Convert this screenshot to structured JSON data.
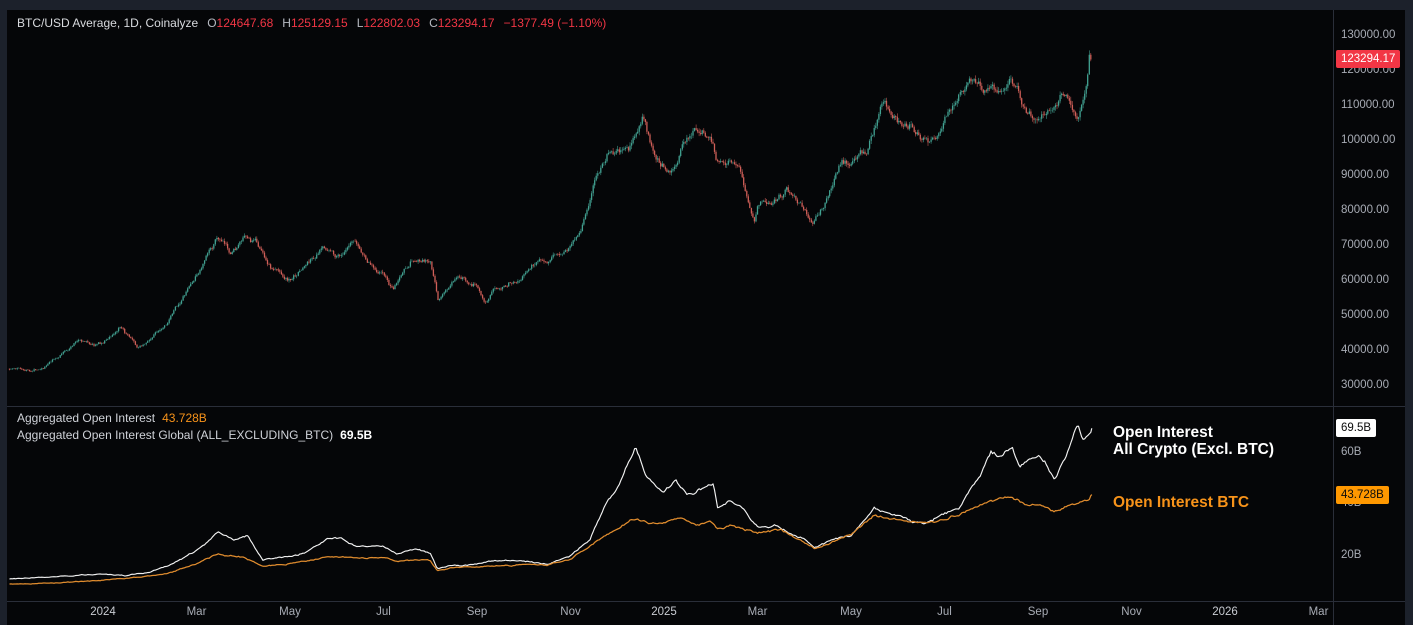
{
  "header": {
    "symbol_title": "BTC/USD Average, 1D, Coinalyze",
    "ohlc": {
      "o_label": "O",
      "o": "124647.68",
      "h_label": "H",
      "h": "125129.15",
      "l_label": "L",
      "l": "122802.03",
      "c_label": "C",
      "c": "123294.17",
      "change": "−1377.49 (−1.10%)"
    }
  },
  "oi_pane": {
    "legend_row1_label": "Aggregated Open Interest",
    "legend_row1_value": "43.728B",
    "legend_row2_label": "Aggregated Open Interest Global (ALL_EXCLUDING_BTC)",
    "legend_row2_value": "69.5B",
    "white_line_label_line1": "Open Interest",
    "white_line_label_line2": "All Crypto (Excl. BTC)",
    "orange_line_label": "Open Interest BTC"
  },
  "badges": {
    "price_current": "123294.17",
    "oi_white_current": "69.5B",
    "oi_orange_current": "43.728B"
  },
  "colors": {
    "candle_up": "#42a292",
    "candle_down": "#d05f58",
    "oi_white": "#f2f2f2",
    "oi_orange": "#e08c2e",
    "price_badge_bg": "#f23645",
    "orange_badge_bg": "#ff9800",
    "negative_text": "#f23645",
    "orange_text": "#f7931a"
  },
  "chart_data": {
    "note": "m = months elapsed since 2023-11-01; data ends early Oct 2025",
    "x_axis": {
      "months_per_label": 2,
      "labels": [
        {
          "label": "2024",
          "m": 2
        },
        {
          "label": "Mar",
          "m": 4
        },
        {
          "label": "May",
          "m": 6
        },
        {
          "label": "Jul",
          "m": 8
        },
        {
          "label": "Sep",
          "m": 10
        },
        {
          "label": "Nov",
          "m": 12
        },
        {
          "label": "2025",
          "m": 14
        },
        {
          "label": "Mar",
          "m": 16
        },
        {
          "label": "May",
          "m": 18
        },
        {
          "label": "Jul",
          "m": 20
        },
        {
          "label": "Sep",
          "m": 22
        },
        {
          "label": "Nov",
          "m": 24
        },
        {
          "label": "2026",
          "m": 26
        },
        {
          "label": "Mar",
          "m": 28
        }
      ]
    },
    "price_pane": {
      "type": "candlestick",
      "name": "BTC/USD Average",
      "timeframe": "1D",
      "source": "Coinalyze",
      "last_candle": {
        "open": 124647.68,
        "high": 125129.15,
        "low": 122802.03,
        "close": 123294.17,
        "change": -1377.49,
        "change_pct": -1.1
      },
      "y_tick_labels": [
        "130000.00",
        "120000.00",
        "110000.00",
        "100000.00",
        "90000.00",
        "80000.00",
        "70000.00",
        "60000.00",
        "50000.00",
        "40000.00",
        "30000.00"
      ],
      "close_anchors": [
        [
          0,
          35000
        ],
        [
          0.5,
          34800
        ],
        [
          1,
          37800
        ],
        [
          1.5,
          43600
        ],
        [
          1.8,
          42000
        ],
        [
          2,
          42300
        ],
        [
          2.35,
          46600
        ],
        [
          2.75,
          39600
        ],
        [
          3,
          42600
        ],
        [
          3.5,
          51000
        ],
        [
          4,
          61200
        ],
        [
          4.45,
          71500
        ],
        [
          4.7,
          67500
        ],
        [
          5,
          71300
        ],
        [
          5.3,
          69500
        ],
        [
          5.6,
          63500
        ],
        [
          6,
          60600
        ],
        [
          6.5,
          66900
        ],
        [
          6.75,
          69500
        ],
        [
          7,
          67500
        ],
        [
          7.35,
          69900
        ],
        [
          7.7,
          64500
        ],
        [
          8,
          62700
        ],
        [
          8.2,
          56800
        ],
        [
          8.6,
          66500
        ],
        [
          9,
          64600
        ],
        [
          9.17,
          53900
        ],
        [
          9.5,
          59400
        ],
        [
          10,
          58900
        ],
        [
          10.2,
          54800
        ],
        [
          10.6,
          60000
        ],
        [
          11,
          63300
        ],
        [
          11.35,
          67400
        ],
        [
          11.7,
          67000
        ],
        [
          12,
          70200
        ],
        [
          12.2,
          75500
        ],
        [
          12.55,
          89900
        ],
        [
          12.8,
          97500
        ],
        [
          13,
          96400
        ],
        [
          13.25,
          95800
        ],
        [
          13.55,
          106100
        ],
        [
          13.75,
          95700
        ],
        [
          14,
          93400
        ],
        [
          14.2,
          94600
        ],
        [
          14.65,
          105000
        ],
        [
          15,
          102400
        ],
        [
          15.12,
          96600
        ],
        [
          15.6,
          96100
        ],
        [
          15.93,
          79500
        ],
        [
          16,
          84300
        ],
        [
          16.3,
          83700
        ],
        [
          16.6,
          86800
        ],
        [
          16.95,
          82500
        ],
        [
          17.2,
          76700
        ],
        [
          17.5,
          84500
        ],
        [
          17.8,
          94900
        ],
        [
          18,
          94200
        ],
        [
          18.35,
          97000
        ],
        [
          18.7,
          109700
        ],
        [
          19,
          104600
        ],
        [
          19.3,
          105800
        ],
        [
          19.7,
          100800
        ],
        [
          20,
          107200
        ],
        [
          20.45,
          118500
        ],
        [
          20.7,
          118000
        ],
        [
          21,
          115800
        ],
        [
          21.15,
          113200
        ],
        [
          21.42,
          121500
        ],
        [
          21.7,
          112500
        ],
        [
          21.95,
          108400
        ],
        [
          22.2,
          111500
        ],
        [
          22.55,
          116800
        ],
        [
          22.85,
          109500
        ],
        [
          23.0,
          114200
        ],
        [
          23.1,
          122500
        ],
        [
          23.15,
          123294
        ]
      ]
    },
    "oi_pane": {
      "type": "line",
      "unit": "B",
      "y_tick_labels": [
        "60B",
        "40B",
        "20B"
      ],
      "series": [
        {
          "name": "Aggregated Open Interest Global (ALL_EXCLUDING_BTC)",
          "display_label": "Open Interest All Crypto (Excl. BTC)",
          "current": 69.5,
          "anchors": [
            [
              0,
              11
            ],
            [
              1,
              12
            ],
            [
              2,
              13
            ],
            [
              2.5,
              12.2
            ],
            [
              3,
              13.5
            ],
            [
              3.5,
              17
            ],
            [
              4,
              22
            ],
            [
              4.45,
              29
            ],
            [
              4.8,
              26
            ],
            [
              5.1,
              27.5
            ],
            [
              5.42,
              18
            ],
            [
              5.8,
              19
            ],
            [
              6.3,
              21
            ],
            [
              6.8,
              27
            ],
            [
              7.1,
              26.5
            ],
            [
              7.5,
              23.5
            ],
            [
              8,
              23.5
            ],
            [
              8.3,
              20.5
            ],
            [
              8.7,
              23
            ],
            [
              9,
              21
            ],
            [
              9.15,
              14.8
            ],
            [
              9.5,
              16
            ],
            [
              10,
              16.5
            ],
            [
              10.4,
              18
            ],
            [
              11,
              18
            ],
            [
              11.5,
              16.8
            ],
            [
              12,
              20
            ],
            [
              12.4,
              26
            ],
            [
              12.8,
              41
            ],
            [
              13,
              45
            ],
            [
              13.4,
              61
            ],
            [
              13.6,
              52
            ],
            [
              13.8,
              47
            ],
            [
              14,
              44
            ],
            [
              14.25,
              50
            ],
            [
              14.5,
              44
            ],
            [
              14.8,
              46
            ],
            [
              15.05,
              48
            ],
            [
              15.15,
              38.5
            ],
            [
              15.4,
              41
            ],
            [
              15.7,
              37
            ],
            [
              16,
              30.5
            ],
            [
              16.4,
              31.5
            ],
            [
              16.8,
              28
            ],
            [
              17,
              26.5
            ],
            [
              17.22,
              23
            ],
            [
              17.6,
              26
            ],
            [
              18,
              27.5
            ],
            [
              18.5,
              38
            ],
            [
              18.8,
              36.5
            ],
            [
              19,
              36
            ],
            [
              19.4,
              33
            ],
            [
              19.6,
              32.5
            ],
            [
              20,
              36.5
            ],
            [
              20.3,
              38
            ],
            [
              20.7,
              50
            ],
            [
              21,
              60
            ],
            [
              21.2,
              58
            ],
            [
              21.45,
              63.5
            ],
            [
              21.6,
              55.5
            ],
            [
              21.8,
              58
            ],
            [
              22,
              60
            ],
            [
              22.15,
              57
            ],
            [
              22.35,
              49.5
            ],
            [
              22.6,
              58
            ],
            [
              22.85,
              71
            ],
            [
              22.95,
              64
            ],
            [
              23.05,
              66
            ],
            [
              23.15,
              69.5
            ]
          ]
        },
        {
          "name": "Aggregated Open Interest",
          "display_label": "Open Interest BTC",
          "current": 43.728,
          "anchors": [
            [
              0,
              9
            ],
            [
              1,
              9.5
            ],
            [
              2,
              10.5
            ],
            [
              3,
              12
            ],
            [
              3.5,
              14
            ],
            [
              4,
              17
            ],
            [
              4.45,
              20.5
            ],
            [
              5,
              19.5
            ],
            [
              5.42,
              15.8
            ],
            [
              6,
              17
            ],
            [
              6.8,
              19.5
            ],
            [
              7.5,
              19
            ],
            [
              8,
              19.5
            ],
            [
              8.3,
              18
            ],
            [
              9,
              18
            ],
            [
              9.15,
              14.2
            ],
            [
              9.5,
              15.5
            ],
            [
              10,
              15.5
            ],
            [
              10.5,
              16
            ],
            [
              11,
              16.5
            ],
            [
              11.5,
              16.2
            ],
            [
              12,
              18.5
            ],
            [
              12.5,
              25
            ],
            [
              13,
              31
            ],
            [
              13.4,
              34.5
            ],
            [
              13.7,
              32.5
            ],
            [
              14,
              33
            ],
            [
              14.3,
              34.2
            ],
            [
              14.7,
              32
            ],
            [
              15,
              33
            ],
            [
              15.15,
              30.5
            ],
            [
              15.5,
              31.5
            ],
            [
              16,
              29
            ],
            [
              16.5,
              29.5
            ],
            [
              17,
              25.5
            ],
            [
              17.22,
              23.2
            ],
            [
              17.6,
              25.5
            ],
            [
              18,
              28
            ],
            [
              18.5,
              35.5
            ],
            [
              19,
              34
            ],
            [
              19.5,
              32.5
            ],
            [
              20,
              34.5
            ],
            [
              20.7,
              39.5
            ],
            [
              21,
              41
            ],
            [
              21.45,
              42.5
            ],
            [
              21.7,
              40
            ],
            [
              22,
              40.5
            ],
            [
              22.35,
              37.5
            ],
            [
              22.7,
              40.5
            ],
            [
              23.0,
              41
            ],
            [
              23.1,
              42
            ],
            [
              23.15,
              43.728
            ]
          ]
        }
      ]
    }
  }
}
